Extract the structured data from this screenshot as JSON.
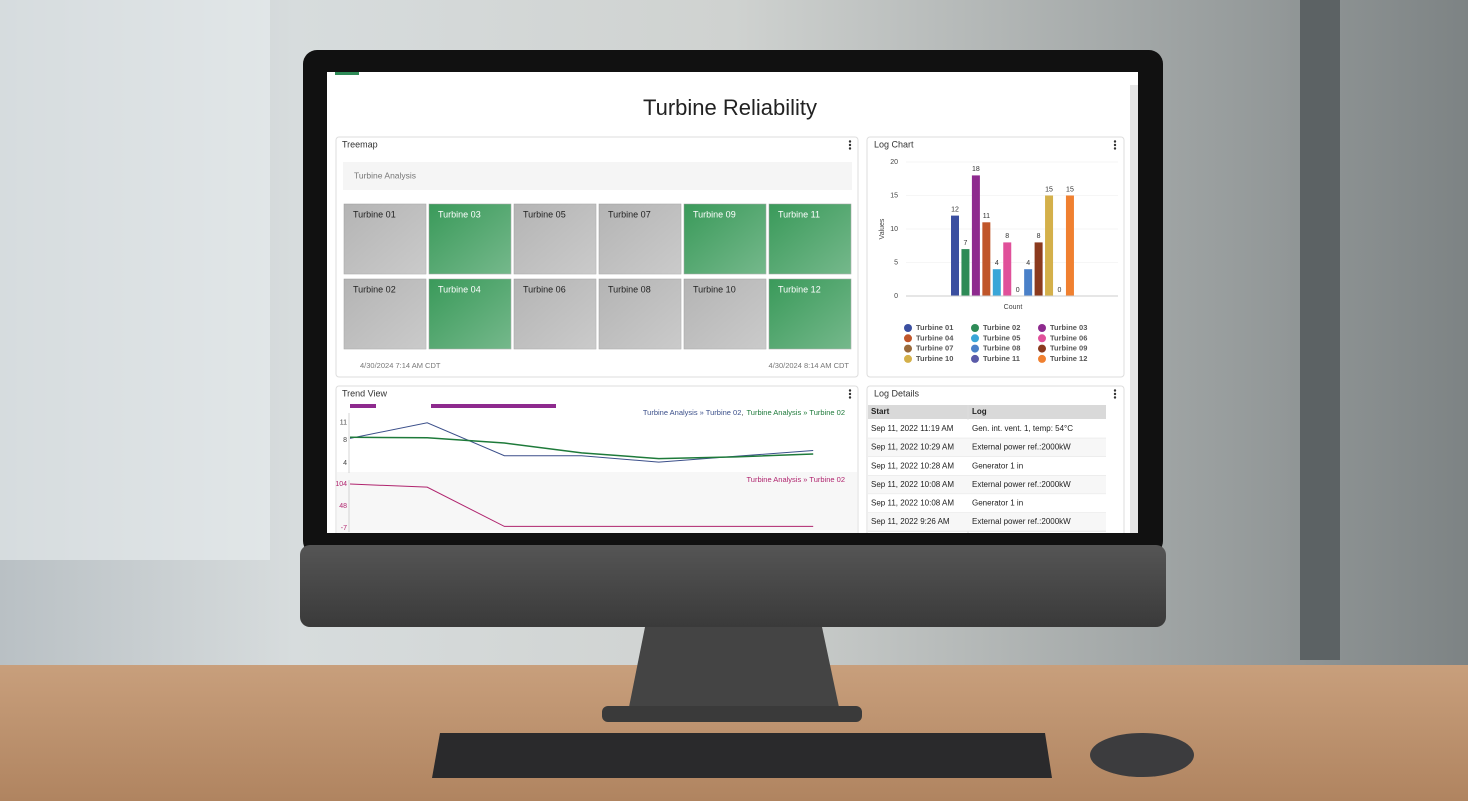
{
  "title": "Turbine Reliability",
  "panels": [
    "Treemap",
    "Log Chart",
    "Trend View",
    "Log Details"
  ],
  "treemap": {
    "subtitle": "Turbine Analysis",
    "tiles": [
      {
        "label": "Turbine 01",
        "color": "#b4b4b4"
      },
      {
        "label": "Turbine 03",
        "color": "#3a9a5a"
      },
      {
        "label": "Turbine 05",
        "color": "#b4b4b4"
      },
      {
        "label": "Turbine 07",
        "color": "#b4b4b4"
      },
      {
        "label": "Turbine 09",
        "color": "#3a9a5a"
      },
      {
        "label": "Turbine 11",
        "color": "#3a9a5a"
      },
      {
        "label": "Turbine 02",
        "color": "#b4b4b4"
      },
      {
        "label": "Turbine 04",
        "color": "#3a9a5a"
      },
      {
        "label": "Turbine 06",
        "color": "#b4b4b4"
      },
      {
        "label": "Turbine 08",
        "color": "#b4b4b4"
      },
      {
        "label": "Turbine 10",
        "color": "#b4b4b4"
      },
      {
        "label": "Turbine 12",
        "color": "#3a9a5a"
      }
    ],
    "start": "4/30/2024 7:14 AM  CDT",
    "end": "4/30/2024 8:14 AM  CDT"
  },
  "chart_data": [
    {
      "type": "bar",
      "x_label": "Count",
      "y_label": "Values",
      "categories": [
        "Turbine 01",
        "Turbine 02",
        "Turbine 03",
        "Turbine 04",
        "Turbine 05",
        "Turbine 06",
        "Turbine 07",
        "Turbine 08",
        "Turbine 09",
        "Turbine 10",
        "Turbine 11",
        "Turbine 12"
      ],
      "values": [
        12,
        7,
        18,
        11,
        4,
        8,
        0,
        4,
        8,
        15,
        0,
        15
      ],
      "colors": [
        "#3b4fa0",
        "#2e8b57",
        "#8e2a8e",
        "#c0562a",
        "#3aa6d8",
        "#e0509a",
        "#9a6a3a",
        "#4a80c8",
        "#8b3a1e",
        "#d4b04a",
        "#5a5aa8",
        "#f08030"
      ],
      "ylim": [
        0,
        20
      ],
      "yticks": [
        0,
        5,
        10,
        15,
        20
      ]
    },
    {
      "type": "line",
      "separator": ",",
      "series": [
        {
          "name": "Turbine Analysis » Turbine 02",
          "color": "#3b4f8a",
          "values": [
            8.3,
            11,
            5.3,
            5.3,
            4.2,
            5.2,
            6.2
          ]
        },
        {
          "name": "Turbine Analysis » Turbine 02",
          "color": "#1e7a3a",
          "values": [
            8.5,
            8.4,
            7.5,
            5.8,
            4.8,
            5.1,
            5.6
          ]
        }
      ],
      "ylim": [
        3,
        12
      ],
      "yticks": [
        4,
        8,
        11
      ]
    },
    {
      "type": "line",
      "series": [
        {
          "name": "Turbine Analysis » Turbine 02",
          "color": "#b0246e",
          "values": [
            104,
            96,
            -3,
            -3,
            -3,
            -3,
            -3
          ]
        }
      ],
      "ylim": [
        -7,
        104
      ],
      "yticks": [
        -7,
        48,
        104
      ]
    }
  ],
  "log": {
    "columns": [
      "Start",
      "Log"
    ],
    "rows": [
      [
        "Sep 11, 2022 11:19 AM",
        "Gen. int. vent. 1, temp: 54°C"
      ],
      [
        "Sep 11, 2022 10:29 AM",
        "External power ref.:2000kW"
      ],
      [
        "Sep 11, 2022 10:28 AM",
        "Generator 1 in"
      ],
      [
        "Sep 11, 2022 10:08 AM",
        "External power ref.:2000kW"
      ],
      [
        "Sep 11, 2022 10:08 AM",
        "Generator 1 in"
      ],
      [
        "Sep 11, 2022 9:26 AM",
        "External power ref.:2000kW"
      ]
    ]
  }
}
